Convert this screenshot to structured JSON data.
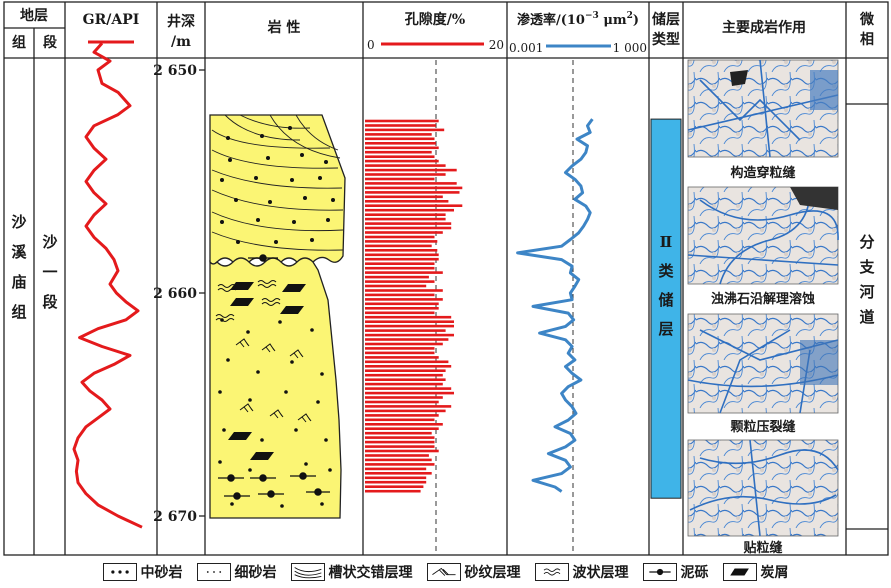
{
  "header": {
    "stratum": "地层",
    "formation": "组",
    "member": "段",
    "gr": "GR/API",
    "depth_line1": "井深",
    "depth_line2": "/m",
    "lithology": "岩 性",
    "porosity": "孔隙度/%",
    "porosity_min": "0",
    "porosity_max": "20",
    "perm_prefix": "渗透率/(10",
    "perm_exp": "−3",
    "perm_unit": " μm",
    "perm_unit_exp": "2",
    "perm_suffix": ")",
    "perm_min": "0.001",
    "perm_max": "1 000",
    "reservoir_line1": "储层",
    "reservoir_line2": "类型",
    "diagenesis": "主要成岩作用",
    "facies_line1": "微",
    "facies_line2": "相"
  },
  "body": {
    "formation_chars": [
      "沙",
      "溪",
      "庙",
      "组"
    ],
    "member_chars": [
      "沙",
      "一",
      "段"
    ],
    "reservoir_chars": [
      "Ⅱ",
      "类",
      "储",
      "层"
    ],
    "facies_chars": [
      "分",
      "支",
      "河",
      "道"
    ],
    "photo_captions": [
      "构造穿粒缝",
      "浊沸石沿解理溶蚀",
      "颗粒压裂缝",
      "贴粒缝"
    ]
  },
  "colors": {
    "gr_curve": "#e41a1c",
    "porosity_bars": "#e41a1c",
    "permeability_curve": "#3d85c6",
    "reservoir_fill": "#3fb4e8",
    "lithology_fill": "#fbf574",
    "grid": "#222222"
  },
  "chart_data": {
    "type": "well-log",
    "depth_range_m": [
      2648.5,
      2671
    ],
    "depth_ticks": [
      {
        "depth": 2650,
        "label": "2 650"
      },
      {
        "depth": 2660,
        "label": "2 660"
      },
      {
        "depth": 2670,
        "label": "2 670"
      }
    ],
    "gr_curve": [
      [
        2648.8,
        0.4
      ],
      [
        2649.2,
        0.3
      ],
      [
        2649.6,
        0.5
      ],
      [
        2650.0,
        0.35
      ],
      [
        2650.6,
        0.4
      ],
      [
        2651.0,
        0.6
      ],
      [
        2651.6,
        0.75
      ],
      [
        2652.0,
        0.6
      ],
      [
        2652.5,
        0.3
      ],
      [
        2653.0,
        0.2
      ],
      [
        2653.5,
        0.3
      ],
      [
        2654.0,
        0.45
      ],
      [
        2654.5,
        0.3
      ],
      [
        2655.0,
        0.2
      ],
      [
        2655.5,
        0.3
      ],
      [
        2656.0,
        0.45
      ],
      [
        2656.5,
        0.3
      ],
      [
        2657.0,
        0.2
      ],
      [
        2657.5,
        0.3
      ],
      [
        2658.0,
        0.45
      ],
      [
        2658.5,
        0.55
      ],
      [
        2659.0,
        0.6
      ],
      [
        2659.6,
        0.5
      ],
      [
        2660.0,
        0.58
      ],
      [
        2660.4,
        0.7
      ],
      [
        2660.8,
        0.85
      ],
      [
        2661.2,
        0.7
      ],
      [
        2661.6,
        0.35
      ],
      [
        2662.0,
        0.12
      ],
      [
        2662.4,
        0.4
      ],
      [
        2662.8,
        0.75
      ],
      [
        2663.2,
        0.55
      ],
      [
        2663.6,
        0.3
      ],
      [
        2664.0,
        0.15
      ],
      [
        2664.4,
        0.25
      ],
      [
        2664.8,
        0.4
      ],
      [
        2665.2,
        0.5
      ],
      [
        2665.6,
        0.35
      ],
      [
        2666.0,
        0.2
      ],
      [
        2666.5,
        0.1
      ],
      [
        2667.0,
        0.05
      ],
      [
        2667.5,
        0.1
      ],
      [
        2668.0,
        0.08
      ],
      [
        2668.5,
        0.1
      ],
      [
        2669.0,
        0.2
      ],
      [
        2669.5,
        0.35
      ],
      [
        2670.0,
        0.6
      ],
      [
        2670.5,
        0.9
      ]
    ],
    "porosity_percent": [
      [
        2652.3,
        10.6
      ],
      [
        2652.5,
        10.2
      ],
      [
        2652.7,
        11.4
      ],
      [
        2652.9,
        9.6
      ],
      [
        2653.1,
        10.0
      ],
      [
        2653.3,
        10.2
      ],
      [
        2653.5,
        10.6
      ],
      [
        2653.7,
        9.6
      ],
      [
        2653.9,
        10.0
      ],
      [
        2654.1,
        10.6
      ],
      [
        2654.3,
        11.6
      ],
      [
        2654.5,
        13.2
      ],
      [
        2654.7,
        11.6
      ],
      [
        2654.9,
        10.0
      ],
      [
        2655.1,
        13.2
      ],
      [
        2655.3,
        14.0
      ],
      [
        2655.5,
        13.6
      ],
      [
        2655.7,
        11.2
      ],
      [
        2655.9,
        12.0
      ],
      [
        2656.1,
        14.0
      ],
      [
        2656.3,
        12.8
      ],
      [
        2656.5,
        11.6
      ],
      [
        2656.7,
        11.6
      ],
      [
        2656.9,
        12.4
      ],
      [
        2657.1,
        12.4
      ],
      [
        2657.3,
        11.2
      ],
      [
        2657.5,
        10.0
      ],
      [
        2657.7,
        10.4
      ],
      [
        2657.9,
        9.6
      ],
      [
        2658.1,
        10.4
      ],
      [
        2658.3,
        10.6
      ],
      [
        2658.5,
        10.6
      ],
      [
        2658.7,
        10.0
      ],
      [
        2658.9,
        10.0
      ],
      [
        2659.1,
        11.2
      ],
      [
        2659.3,
        9.2
      ],
      [
        2659.5,
        10.0
      ],
      [
        2659.7,
        8.8
      ],
      [
        2659.9,
        11.2
      ],
      [
        2660.1,
        10.0
      ],
      [
        2660.3,
        11.2
      ],
      [
        2660.5,
        10.6
      ],
      [
        2660.7,
        10.6
      ],
      [
        2660.9,
        10.0
      ],
      [
        2661.1,
        12.4
      ],
      [
        2661.3,
        12.8
      ],
      [
        2661.5,
        12.8
      ],
      [
        2661.7,
        11.6
      ],
      [
        2661.9,
        12.8
      ],
      [
        2662.1,
        12.0
      ],
      [
        2662.3,
        11.2
      ],
      [
        2662.5,
        10.0
      ],
      [
        2662.7,
        10.0
      ],
      [
        2662.9,
        10.6
      ],
      [
        2663.1,
        12.0
      ],
      [
        2663.3,
        12.4
      ],
      [
        2663.5,
        11.6
      ],
      [
        2663.7,
        11.2
      ],
      [
        2663.9,
        11.6
      ],
      [
        2664.1,
        11.2
      ],
      [
        2664.3,
        12.4
      ],
      [
        2664.5,
        12.8
      ],
      [
        2664.7,
        11.2
      ],
      [
        2664.9,
        10.6
      ],
      [
        2665.1,
        12.4
      ],
      [
        2665.3,
        11.6
      ],
      [
        2665.5,
        10.6
      ],
      [
        2665.7,
        10.0
      ],
      [
        2665.9,
        11.2
      ],
      [
        2666.1,
        10.6
      ],
      [
        2666.3,
        9.6
      ],
      [
        2666.5,
        10.0
      ],
      [
        2666.7,
        10.0
      ],
      [
        2666.9,
        10.0
      ],
      [
        2667.1,
        10.6
      ],
      [
        2667.3,
        9.2
      ],
      [
        2667.5,
        9.6
      ],
      [
        2667.7,
        10.0
      ],
      [
        2667.9,
        8.8
      ],
      [
        2668.1,
        9.6
      ],
      [
        2668.3,
        8.8
      ],
      [
        2668.5,
        8.8
      ],
      [
        2668.7,
        8.4
      ],
      [
        2668.9,
        8.0
      ]
    ],
    "permeability_mD": [
      [
        2652.2,
        5
      ],
      [
        2652.5,
        3
      ],
      [
        2652.8,
        4
      ],
      [
        2653.1,
        1
      ],
      [
        2653.4,
        3
      ],
      [
        2653.7,
        2.5
      ],
      [
        2654.0,
        1.5
      ],
      [
        2654.3,
        0.6
      ],
      [
        2654.6,
        0.3
      ],
      [
        2654.9,
        0.8
      ],
      [
        2655.2,
        1.5
      ],
      [
        2655.5,
        1.8
      ],
      [
        2655.8,
        0.8
      ],
      [
        2656.1,
        2.5
      ],
      [
        2656.4,
        4
      ],
      [
        2656.7,
        3
      ],
      [
        2657.0,
        2
      ],
      [
        2657.3,
        1.2
      ],
      [
        2657.6,
        0.5
      ],
      [
        2657.9,
        0.2
      ],
      [
        2658.2,
        0.002
      ],
      [
        2658.5,
        0.2
      ],
      [
        2658.8,
        0.6
      ],
      [
        2659.1,
        0.5
      ],
      [
        2659.4,
        1.2
      ],
      [
        2659.7,
        0.8
      ],
      [
        2660.0,
        0.5
      ],
      [
        2660.3,
        0.6
      ],
      [
        2660.6,
        0.01
      ],
      [
        2660.9,
        0.4
      ],
      [
        2661.2,
        0.7
      ],
      [
        2661.5,
        0.3
      ],
      [
        2661.8,
        0.02
      ],
      [
        2662.1,
        0.3
      ],
      [
        2662.4,
        0.6
      ],
      [
        2662.7,
        0.4
      ],
      [
        2663.0,
        0.8
      ],
      [
        2663.3,
        0.3
      ],
      [
        2663.6,
        0.6
      ],
      [
        2663.9,
        1.5
      ],
      [
        2664.2,
        0.4
      ],
      [
        2664.5,
        0.2
      ],
      [
        2664.8,
        0.3
      ],
      [
        2665.1,
        0.6
      ],
      [
        2665.4,
        0.9
      ],
      [
        2665.7,
        0.4
      ],
      [
        2666.0,
        0.1
      ],
      [
        2666.3,
        0.5
      ],
      [
        2666.6,
        0.8
      ],
      [
        2666.9,
        0.3
      ],
      [
        2667.2,
        0.05
      ],
      [
        2667.5,
        0.3
      ],
      [
        2667.8,
        0.5
      ],
      [
        2668.1,
        0.2
      ],
      [
        2668.4,
        0.01
      ],
      [
        2668.7,
        0.1
      ],
      [
        2668.9,
        0.2
      ]
    ],
    "reservoir_interval_m": [
      2652.2,
      2669.2
    ]
  },
  "legend": [
    {
      "label": "中砂岩",
      "symbol": "medium-sandstone"
    },
    {
      "label": "细砂岩",
      "symbol": "fine-sandstone"
    },
    {
      "label": "槽状交错层理",
      "symbol": "trough-cross-bedding"
    },
    {
      "label": "砂纹层理",
      "symbol": "ripple-lamination"
    },
    {
      "label": "波状层理",
      "symbol": "wavy-bedding"
    },
    {
      "label": "泥砾",
      "symbol": "mud-gravel"
    },
    {
      "label": "炭屑",
      "symbol": "carbon-debris"
    }
  ]
}
